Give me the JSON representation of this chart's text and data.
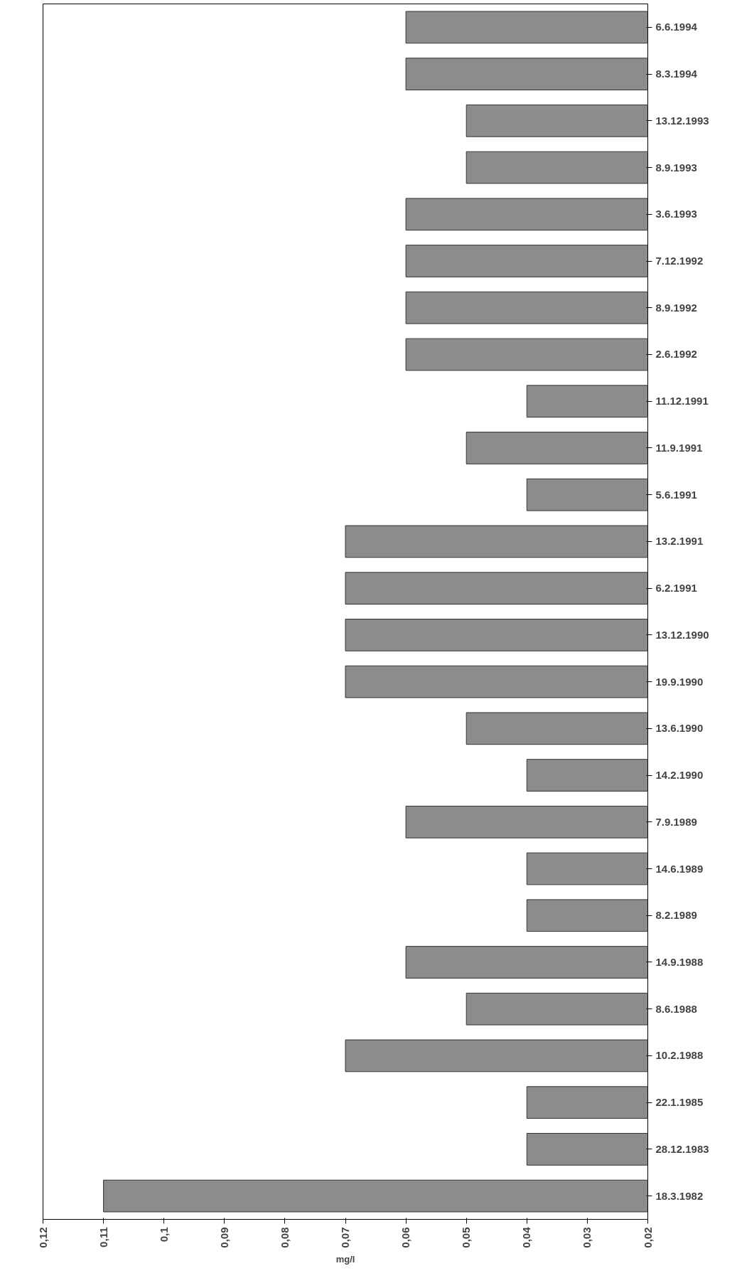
{
  "chart_data": {
    "type": "bar",
    "orientation": "horizontal",
    "xlabel": "mg/l",
    "categories": [
      "6.6.1994",
      "8.3.1994",
      "13.12.1993",
      "8.9.1993",
      "3.6.1993",
      "7.12.1992",
      "8.9.1992",
      "2.6.1992",
      "11.12.1991",
      "11.9.1991",
      "5.6.1991",
      "13.2.1991",
      "6.2.1991",
      "13.12.1990",
      "19.9.1990",
      "13.6.1990",
      "14.2.1990",
      "7.9.1989",
      "14.6.1989",
      "8.2.1989",
      "14.9.1988",
      "8.6.1988",
      "10.2.1988",
      "22.1.1985",
      "28.12.1983",
      "18.3.1982"
    ],
    "values": [
      0.06,
      0.06,
      0.05,
      0.05,
      0.06,
      0.06,
      0.06,
      0.06,
      0.04,
      0.05,
      0.04,
      0.07,
      0.07,
      0.07,
      0.07,
      0.05,
      0.04,
      0.06,
      0.04,
      0.04,
      0.06,
      0.05,
      0.07,
      0.04,
      0.04,
      0.11
    ],
    "color": "#8c8c8c",
    "xlim": [
      0.12,
      0.02
    ],
    "xticks": [
      {
        "value": 0.12,
        "label": "0,12"
      },
      {
        "value": 0.11,
        "label": "0,11"
      },
      {
        "value": 0.1,
        "label": "0,1"
      },
      {
        "value": 0.09,
        "label": "0,09"
      },
      {
        "value": 0.08,
        "label": "0,08"
      },
      {
        "value": 0.07,
        "label": "0,07"
      },
      {
        "value": 0.06,
        "label": "0,06"
      },
      {
        "value": 0.05,
        "label": "0,05"
      },
      {
        "value": 0.04,
        "label": "0,04"
      },
      {
        "value": 0.03,
        "label": "0,03"
      },
      {
        "value": 0.02,
        "label": "0,02"
      }
    ],
    "grid": false
  }
}
